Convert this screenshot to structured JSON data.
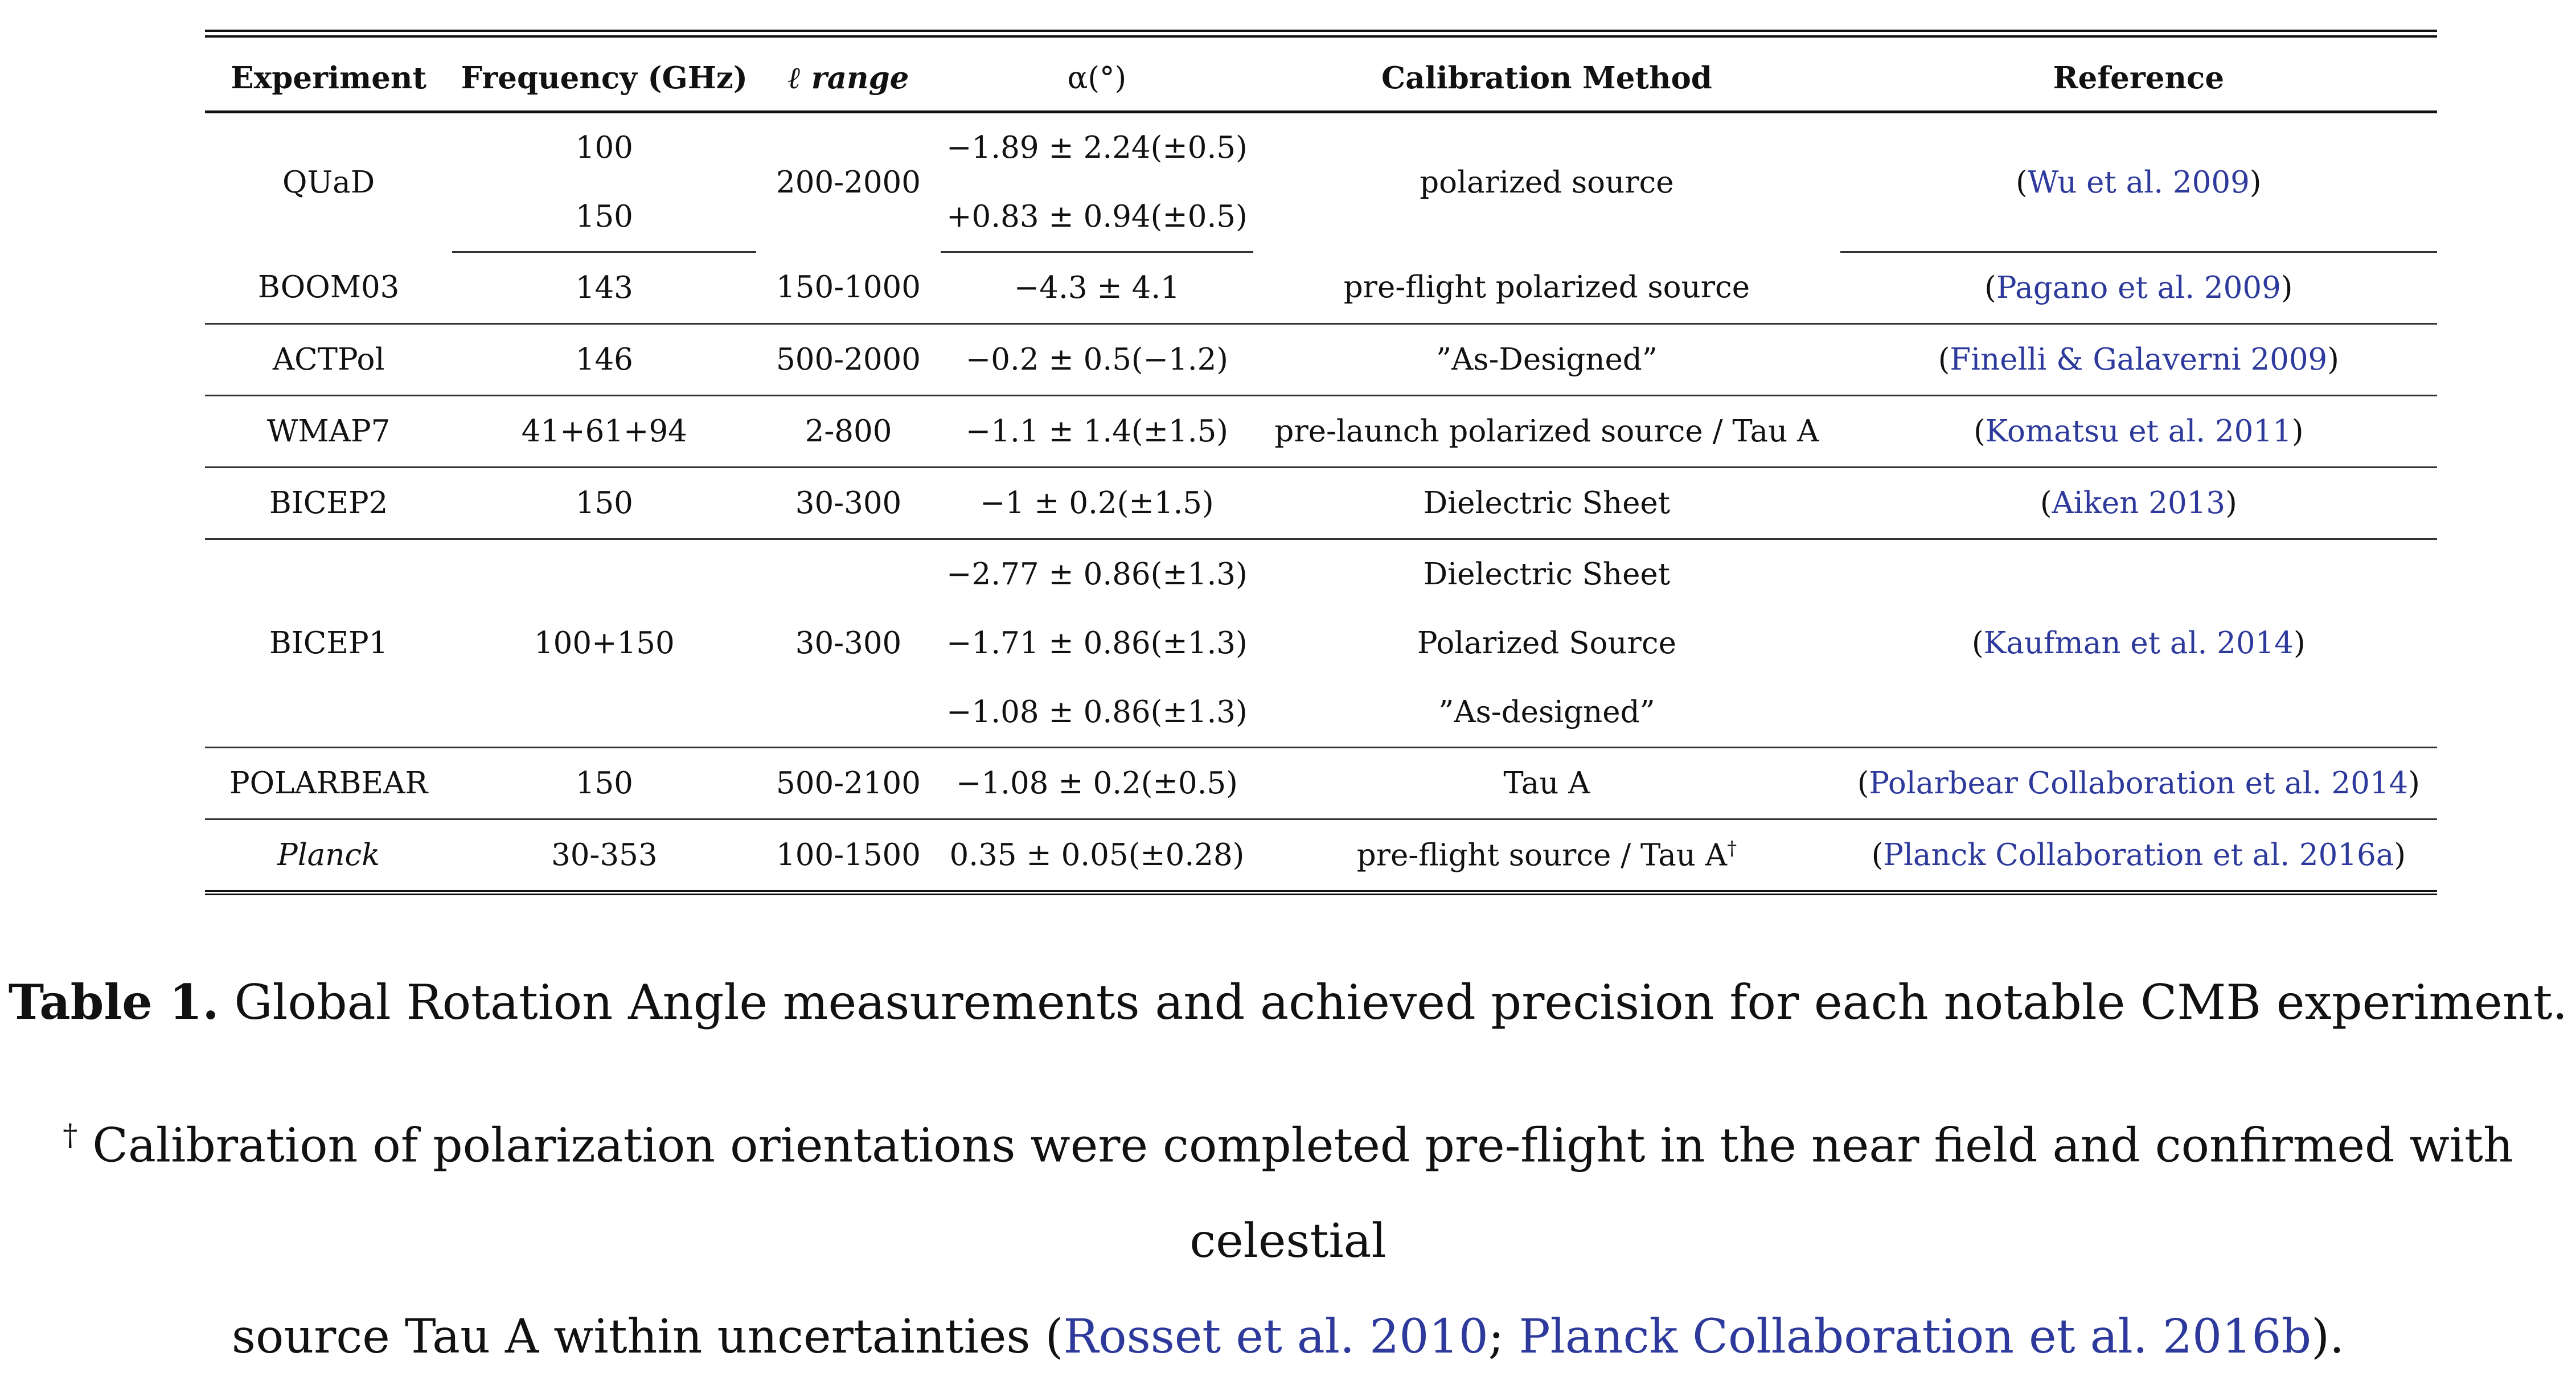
{
  "table": {
    "headers": [
      "Experiment",
      "Frequency (GHz)",
      "ℓ range",
      "α(°)",
      "Calibration Method",
      "Reference"
    ],
    "rows": {
      "quad": {
        "experiment": "QUaD",
        "freq": [
          "100",
          "150"
        ],
        "lrange": "200-2000",
        "alpha": [
          "−1.89 ± 2.24(±0.5)",
          "+0.83 ± 0.94(±0.5)"
        ],
        "method": "polarized source",
        "ref": "Wu et al. 2009"
      },
      "boom03": {
        "experiment": "BOOM03",
        "freq": "143",
        "lrange": "150-1000",
        "alpha": "−4.3 ± 4.1",
        "method": "pre-flight polarized source",
        "ref": "Pagano et al. 2009"
      },
      "actpol": {
        "experiment": "ACTPol",
        "freq": "146",
        "lrange": "500-2000",
        "alpha": "−0.2 ± 0.5(−1.2)",
        "method": "”As-Designed”",
        "ref": "Finelli & Galaverni 2009"
      },
      "wmap7": {
        "experiment": "WMAP7",
        "freq": "41+61+94",
        "lrange": "2-800",
        "alpha": "−1.1 ± 1.4(±1.5)",
        "method": "pre-launch polarized source / Tau A",
        "ref": "Komatsu et al. 2011"
      },
      "bicep2": {
        "experiment": "BICEP2",
        "freq": "150",
        "lrange": "30-300",
        "alpha": "−1 ± 0.2(±1.5)",
        "method": "Dielectric Sheet",
        "ref": "Aiken 2013"
      },
      "bicep1": {
        "experiment": "BICEP1",
        "freq": "100+150",
        "lrange": "30-300",
        "alpha": [
          "−2.77 ± 0.86(±1.3)",
          "−1.71 ± 0.86(±1.3)",
          "−1.08 ± 0.86(±1.3)"
        ],
        "method": [
          "Dielectric Sheet",
          "Polarized Source",
          "”As-designed”"
        ],
        "ref": "Kaufman et al. 2014"
      },
      "polarbear": {
        "experiment": "POLARBEAR",
        "freq": "150",
        "lrange": "500-2100",
        "alpha": "−1.08 ± 0.2(±0.5)",
        "method": "Tau A",
        "ref": "Polarbear Collaboration et al. 2014"
      },
      "planck": {
        "experiment": "Planck",
        "freq": "30-353",
        "lrange": "100-1500",
        "alpha": "0.35 ± 0.05(±0.28)",
        "method": "pre-flight source / Tau A",
        "method_mark": "†",
        "ref": "Planck Collaboration et al. 2016a"
      }
    }
  },
  "caption": {
    "label": "Table 1.",
    "text": "Global Rotation Angle measurements and achieved precision for each notable CMB experiment."
  },
  "footnote": {
    "mark": "†",
    "line1": "Calibration of polarization orientations were completed pre-flight in the near field and confirmed with celestial",
    "line2_pre": "source Tau A within uncertainties (",
    "cite1": "Rosset et al. 2010",
    "sep": "; ",
    "cite2": "Planck Collaboration et al. 2016b",
    "line2_post": ")."
  }
}
